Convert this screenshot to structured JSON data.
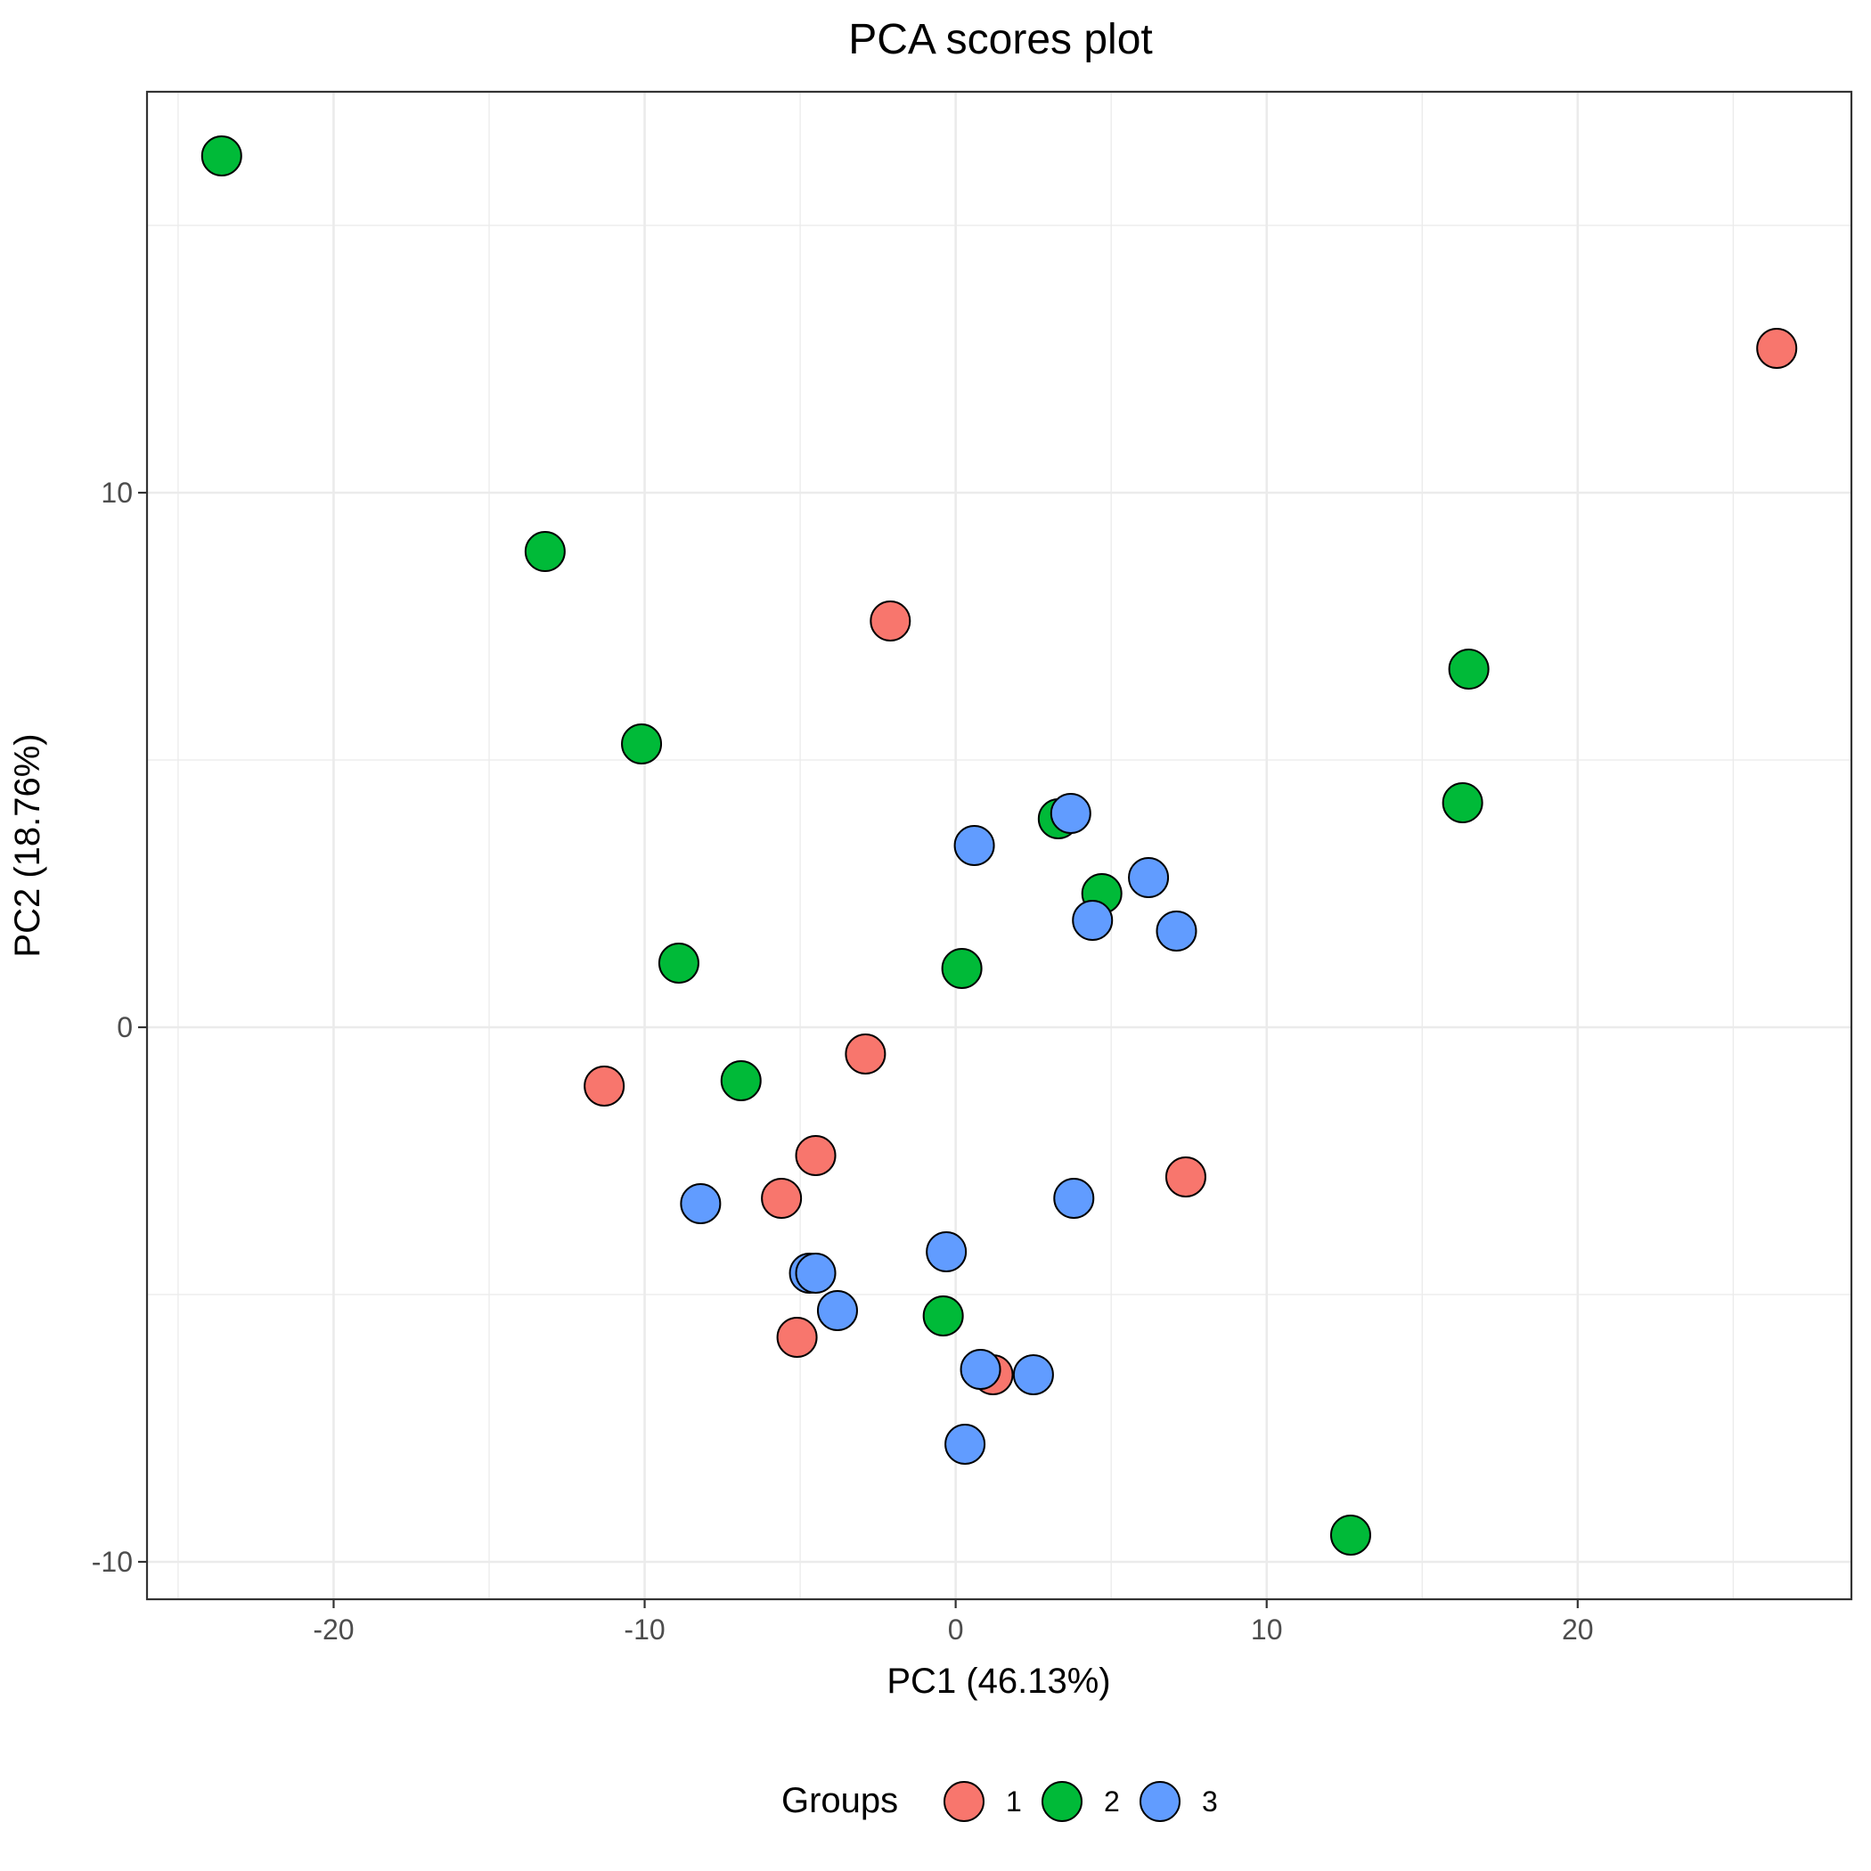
{
  "chart_data": {
    "type": "scatter",
    "title": "PCA scores plot",
    "xlabel": "PC1 (46.13%)",
    "ylabel": "PC2 (18.76%)",
    "xlim": [
      -26,
      28.8
    ],
    "ylim": [
      -10.7,
      17.5
    ],
    "x_ticks": [
      -20,
      -10,
      0,
      10,
      20
    ],
    "y_ticks": [
      -10,
      0,
      10
    ],
    "x_tick_labels": [
      "-20",
      "-10",
      "0",
      "10",
      "20"
    ],
    "y_tick_labels": [
      "-10",
      "0",
      "10"
    ],
    "grid": true,
    "legend_position": "bottom",
    "legend_title": "Groups",
    "series": [
      {
        "name": "1",
        "color": "#F8766D",
        "points": [
          {
            "x": 26.4,
            "y": 12.7
          },
          {
            "x": -2.1,
            "y": 7.6
          },
          {
            "x": -2.9,
            "y": -0.5
          },
          {
            "x": -11.3,
            "y": -1.1
          },
          {
            "x": -4.5,
            "y": -2.4
          },
          {
            "x": -5.6,
            "y": -3.2
          },
          {
            "x": 7.4,
            "y": -2.8
          },
          {
            "x": -5.1,
            "y": -5.8
          },
          {
            "x": 1.2,
            "y": -6.5
          }
        ]
      },
      {
        "name": "2",
        "color": "#00BA38",
        "points": [
          {
            "x": -23.6,
            "y": 16.3
          },
          {
            "x": -13.2,
            "y": 8.9
          },
          {
            "x": -10.1,
            "y": 5.3
          },
          {
            "x": 16.5,
            "y": 6.7
          },
          {
            "x": 16.3,
            "y": 4.2
          },
          {
            "x": 3.3,
            "y": 3.9
          },
          {
            "x": 4.7,
            "y": 2.5
          },
          {
            "x": -8.9,
            "y": 1.2
          },
          {
            "x": 0.2,
            "y": 1.1
          },
          {
            "x": -6.9,
            "y": -1.0
          },
          {
            "x": -0.4,
            "y": -5.4
          },
          {
            "x": 12.7,
            "y": -9.5
          }
        ]
      },
      {
        "name": "3",
        "color": "#619CFF",
        "points": [
          {
            "x": 3.7,
            "y": 4.0
          },
          {
            "x": 0.6,
            "y": 3.4
          },
          {
            "x": 6.2,
            "y": 2.8
          },
          {
            "x": 4.4,
            "y": 2.0
          },
          {
            "x": 7.1,
            "y": 1.8
          },
          {
            "x": -8.2,
            "y": -3.3
          },
          {
            "x": 3.8,
            "y": -3.2
          },
          {
            "x": -0.3,
            "y": -4.2
          },
          {
            "x": -4.7,
            "y": -4.6
          },
          {
            "x": -4.5,
            "y": -4.6
          },
          {
            "x": -3.8,
            "y": -5.3
          },
          {
            "x": 0.8,
            "y": -6.4
          },
          {
            "x": 2.5,
            "y": -6.5
          },
          {
            "x": 0.3,
            "y": -7.8
          }
        ]
      }
    ]
  }
}
